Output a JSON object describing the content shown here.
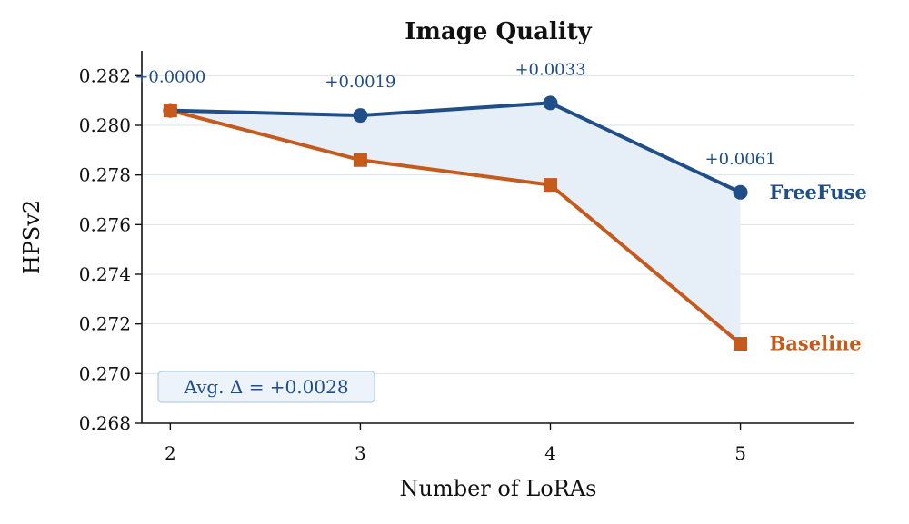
{
  "chart_data": {
    "type": "line",
    "title": "Image Quality",
    "xlabel": "Number of LoRAs",
    "ylabel": "HPSv2",
    "x": [
      2,
      3,
      4,
      5
    ],
    "x_ticks": [
      "2",
      "3",
      "4",
      "5"
    ],
    "xlim": [
      1.85,
      5.6
    ],
    "ylim": [
      0.268,
      0.283
    ],
    "y_ticks": [
      "0.268",
      "0.270",
      "0.272",
      "0.274",
      "0.276",
      "0.278",
      "0.280",
      "0.282"
    ],
    "grid": "horizontal",
    "series": [
      {
        "name": "FreeFuse",
        "values": [
          0.2806,
          0.2804,
          0.2809,
          0.2773
        ],
        "color": "#1f4e89",
        "marker": "circle"
      },
      {
        "name": "Baseline",
        "values": [
          0.2806,
          0.2786,
          0.2776,
          0.2712
        ],
        "color": "#c55a1c",
        "marker": "square"
      }
    ],
    "fill_between": {
      "color": "#e6eef8"
    },
    "annotations": [
      "+0.0000",
      "+0.0019",
      "+0.0033",
      "+0.0061"
    ],
    "avg_box": "Avg. Δ = +0.0028"
  }
}
